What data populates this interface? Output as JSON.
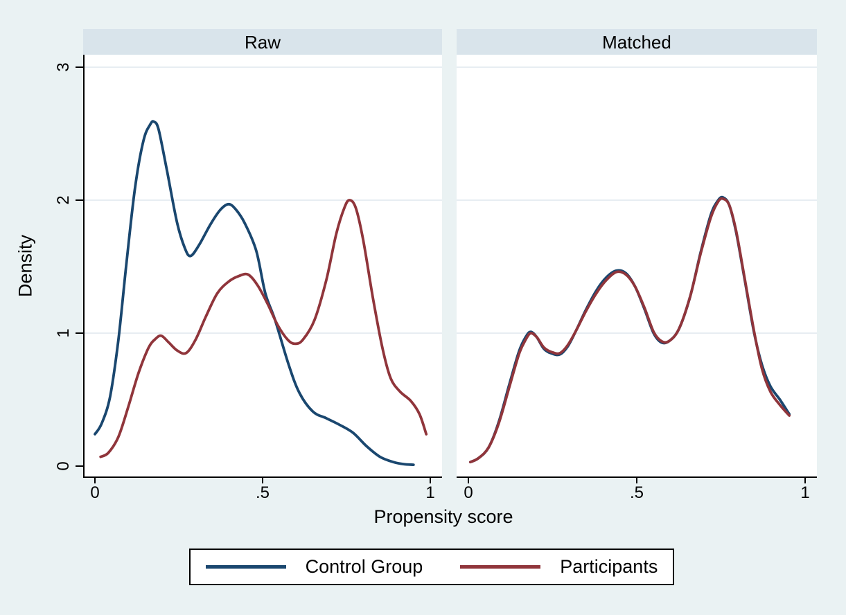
{
  "chart_data": {
    "type": "line",
    "subtype": "kernel-density-balance-plot",
    "title": "",
    "xlabel": "Propensity score",
    "ylabel": "Density",
    "xlim": [
      0,
      1
    ],
    "ylim": [
      0,
      3
    ],
    "grid": true,
    "gridlines_y": [
      1,
      2,
      3
    ],
    "x_ticks": [
      {
        "value": 0,
        "label": "0"
      },
      {
        "value": 0.5,
        "label": ".5"
      },
      {
        "value": 1,
        "label": "1"
      }
    ],
    "y_ticks": [
      {
        "value": 0,
        "label": "0"
      },
      {
        "value": 1,
        "label": "1"
      },
      {
        "value": 2,
        "label": "2"
      },
      {
        "value": 3,
        "label": "3"
      }
    ],
    "legend": {
      "position": "bottom",
      "entries": [
        {
          "label": "Control Group",
          "color": "#1A476F"
        },
        {
          "label": "Participants",
          "color": "#90353B"
        }
      ]
    },
    "panels": [
      {
        "title": "Raw",
        "series": [
          {
            "name": "Control Group",
            "color": "#1A476F",
            "points": [
              [
                0.0,
                0.24
              ],
              [
                0.02,
                0.32
              ],
              [
                0.045,
                0.52
              ],
              [
                0.07,
                0.95
              ],
              [
                0.095,
                1.55
              ],
              [
                0.12,
                2.1
              ],
              [
                0.145,
                2.45
              ],
              [
                0.165,
                2.57
              ],
              [
                0.176,
                2.59
              ],
              [
                0.19,
                2.53
              ],
              [
                0.215,
                2.22
              ],
              [
                0.245,
                1.83
              ],
              [
                0.268,
                1.64
              ],
              [
                0.285,
                1.58
              ],
              [
                0.31,
                1.66
              ],
              [
                0.345,
                1.82
              ],
              [
                0.375,
                1.93
              ],
              [
                0.399,
                1.97
              ],
              [
                0.42,
                1.93
              ],
              [
                0.446,
                1.83
              ],
              [
                0.481,
                1.62
              ],
              [
                0.508,
                1.3
              ],
              [
                0.537,
                1.1
              ],
              [
                0.578,
                0.76
              ],
              [
                0.61,
                0.55
              ],
              [
                0.65,
                0.41
              ],
              [
                0.69,
                0.36
              ],
              [
                0.73,
                0.31
              ],
              [
                0.77,
                0.25
              ],
              [
                0.81,
                0.15
              ],
              [
                0.85,
                0.07
              ],
              [
                0.89,
                0.03
              ],
              [
                0.92,
                0.015
              ],
              [
                0.95,
                0.01
              ]
            ]
          },
          {
            "name": "Participants",
            "color": "#90353B",
            "points": [
              [
                0.017,
                0.07
              ],
              [
                0.04,
                0.1
              ],
              [
                0.07,
                0.22
              ],
              [
                0.1,
                0.45
              ],
              [
                0.13,
                0.7
              ],
              [
                0.16,
                0.89
              ],
              [
                0.18,
                0.955
              ],
              [
                0.198,
                0.98
              ],
              [
                0.22,
                0.93
              ],
              [
                0.245,
                0.87
              ],
              [
                0.272,
                0.85
              ],
              [
                0.3,
                0.95
              ],
              [
                0.33,
                1.12
              ],
              [
                0.365,
                1.3
              ],
              [
                0.4,
                1.39
              ],
              [
                0.43,
                1.43
              ],
              [
                0.457,
                1.44
              ],
              [
                0.485,
                1.36
              ],
              [
                0.515,
                1.22
              ],
              [
                0.545,
                1.06
              ],
              [
                0.575,
                0.95
              ],
              [
                0.597,
                0.92
              ],
              [
                0.62,
                0.95
              ],
              [
                0.655,
                1.1
              ],
              [
                0.69,
                1.4
              ],
              [
                0.72,
                1.75
              ],
              [
                0.745,
                1.95
              ],
              [
                0.76,
                2.0
              ],
              [
                0.778,
                1.94
              ],
              [
                0.8,
                1.7
              ],
              [
                0.83,
                1.25
              ],
              [
                0.858,
                0.88
              ],
              [
                0.882,
                0.66
              ],
              [
                0.91,
                0.56
              ],
              [
                0.942,
                0.49
              ],
              [
                0.968,
                0.39
              ],
              [
                0.988,
                0.24
              ]
            ]
          }
        ]
      },
      {
        "title": "Matched",
        "series": [
          {
            "name": "Control Group",
            "color": "#1A476F",
            "points": [
              [
                0.006,
                0.03
              ],
              [
                0.03,
                0.06
              ],
              [
                0.06,
                0.14
              ],
              [
                0.09,
                0.33
              ],
              [
                0.12,
                0.6
              ],
              [
                0.15,
                0.86
              ],
              [
                0.17,
                0.97
              ],
              [
                0.185,
                1.01
              ],
              [
                0.203,
                0.97
              ],
              [
                0.225,
                0.88
              ],
              [
                0.25,
                0.845
              ],
              [
                0.272,
                0.84
              ],
              [
                0.295,
                0.9
              ],
              [
                0.32,
                1.02
              ],
              [
                0.35,
                1.18
              ],
              [
                0.38,
                1.32
              ],
              [
                0.41,
                1.42
              ],
              [
                0.44,
                1.47
              ],
              [
                0.468,
                1.45
              ],
              [
                0.495,
                1.35
              ],
              [
                0.523,
                1.18
              ],
              [
                0.55,
                1.0
              ],
              [
                0.573,
                0.93
              ],
              [
                0.596,
                0.94
              ],
              [
                0.625,
                1.03
              ],
              [
                0.658,
                1.27
              ],
              [
                0.69,
                1.61
              ],
              [
                0.72,
                1.89
              ],
              [
                0.742,
                2.0
              ],
              [
                0.757,
                2.02
              ],
              [
                0.775,
                1.96
              ],
              [
                0.795,
                1.76
              ],
              [
                0.82,
                1.41
              ],
              [
                0.848,
                1.01
              ],
              [
                0.872,
                0.76
              ],
              [
                0.897,
                0.6
              ],
              [
                0.925,
                0.5
              ],
              [
                0.953,
                0.39
              ]
            ]
          },
          {
            "name": "Participants",
            "color": "#90353B",
            "points": [
              [
                0.006,
                0.03
              ],
              [
                0.03,
                0.06
              ],
              [
                0.06,
                0.14
              ],
              [
                0.09,
                0.32
              ],
              [
                0.12,
                0.58
              ],
              [
                0.15,
                0.84
              ],
              [
                0.17,
                0.95
              ],
              [
                0.185,
                1.0
              ],
              [
                0.203,
                0.97
              ],
              [
                0.225,
                0.89
              ],
              [
                0.25,
                0.855
              ],
              [
                0.272,
                0.85
              ],
              [
                0.295,
                0.91
              ],
              [
                0.32,
                1.02
              ],
              [
                0.35,
                1.17
              ],
              [
                0.38,
                1.3
              ],
              [
                0.41,
                1.4
              ],
              [
                0.44,
                1.46
              ],
              [
                0.468,
                1.44
              ],
              [
                0.495,
                1.35
              ],
              [
                0.523,
                1.19
              ],
              [
                0.55,
                1.01
              ],
              [
                0.573,
                0.94
              ],
              [
                0.596,
                0.94
              ],
              [
                0.625,
                1.03
              ],
              [
                0.658,
                1.27
              ],
              [
                0.69,
                1.6
              ],
              [
                0.72,
                1.87
              ],
              [
                0.742,
                1.99
              ],
              [
                0.757,
                2.01
              ],
              [
                0.775,
                1.96
              ],
              [
                0.795,
                1.77
              ],
              [
                0.82,
                1.42
              ],
              [
                0.848,
                1.02
              ],
              [
                0.872,
                0.73
              ],
              [
                0.897,
                0.56
              ],
              [
                0.925,
                0.46
              ],
              [
                0.953,
                0.38
              ]
            ]
          }
        ]
      }
    ]
  },
  "colors": {
    "background": "#EAF2F3",
    "panel_header": "#D9E4EB",
    "plot_background": "#FFFFFF",
    "gridline": "#E7EDF2",
    "axis": "#000000",
    "navy": "#1A476F",
    "maroon": "#90353B"
  }
}
